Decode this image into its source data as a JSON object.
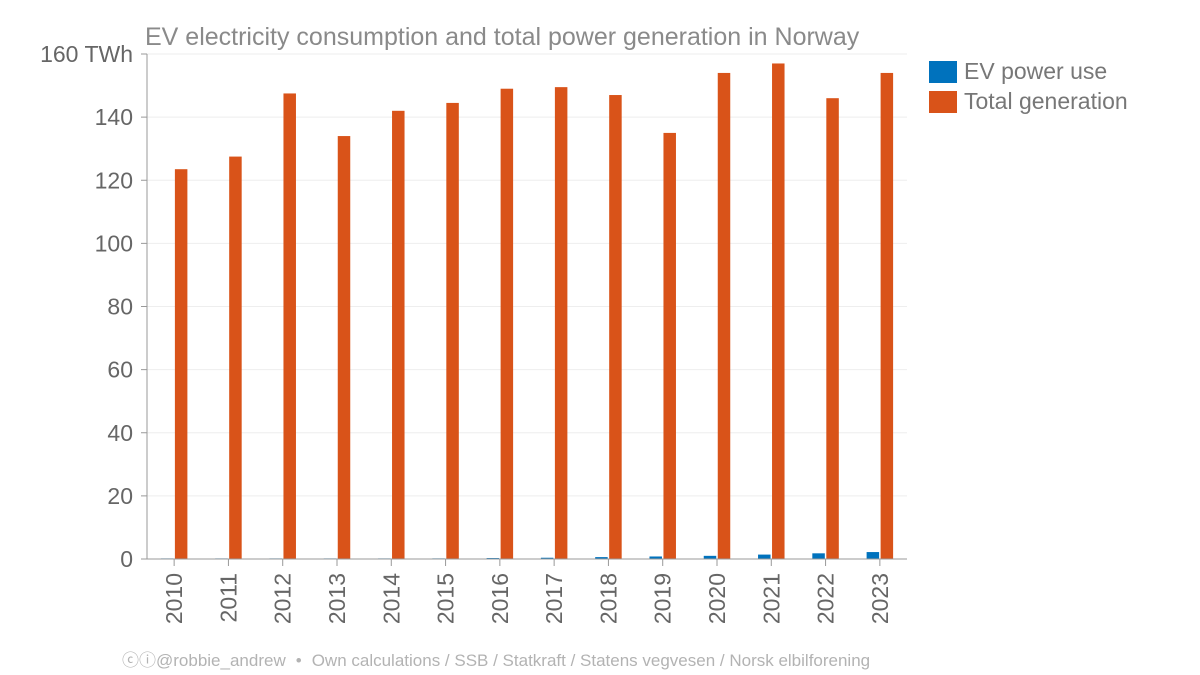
{
  "chart_data": {
    "type": "bar",
    "title": "EV electricity consumption and total power generation in Norway",
    "ylabel": "",
    "xlabel": "",
    "y_unit": "TWh",
    "ylim": [
      0,
      160
    ],
    "y_ticks": [
      0,
      20,
      40,
      60,
      80,
      100,
      120,
      140,
      160
    ],
    "grid": true,
    "legend_position": "top-right",
    "categories": [
      "2010",
      "2011",
      "2012",
      "2013",
      "2014",
      "2015",
      "2016",
      "2017",
      "2018",
      "2019",
      "2020",
      "2021",
      "2022",
      "2023"
    ],
    "series": [
      {
        "name": "EV power use",
        "color": "#0072bd",
        "values": [
          0.01,
          0.02,
          0.03,
          0.05,
          0.1,
          0.2,
          0.3,
          0.4,
          0.6,
          0.8,
          1.0,
          1.4,
          1.8,
          2.2
        ]
      },
      {
        "name": "Total generation",
        "color": "#d95319",
        "values": [
          123.5,
          127.5,
          147.5,
          134,
          142,
          144.5,
          149,
          149.5,
          147,
          135,
          154,
          157,
          146,
          154
        ]
      }
    ]
  },
  "footer": {
    "license_icons": "ⓒⓘ",
    "handle": "@robbie_andrew",
    "separator": "•",
    "sources": "Own calculations / SSB / Statkraft / Statens vegvesen / Norsk elbilforening"
  }
}
